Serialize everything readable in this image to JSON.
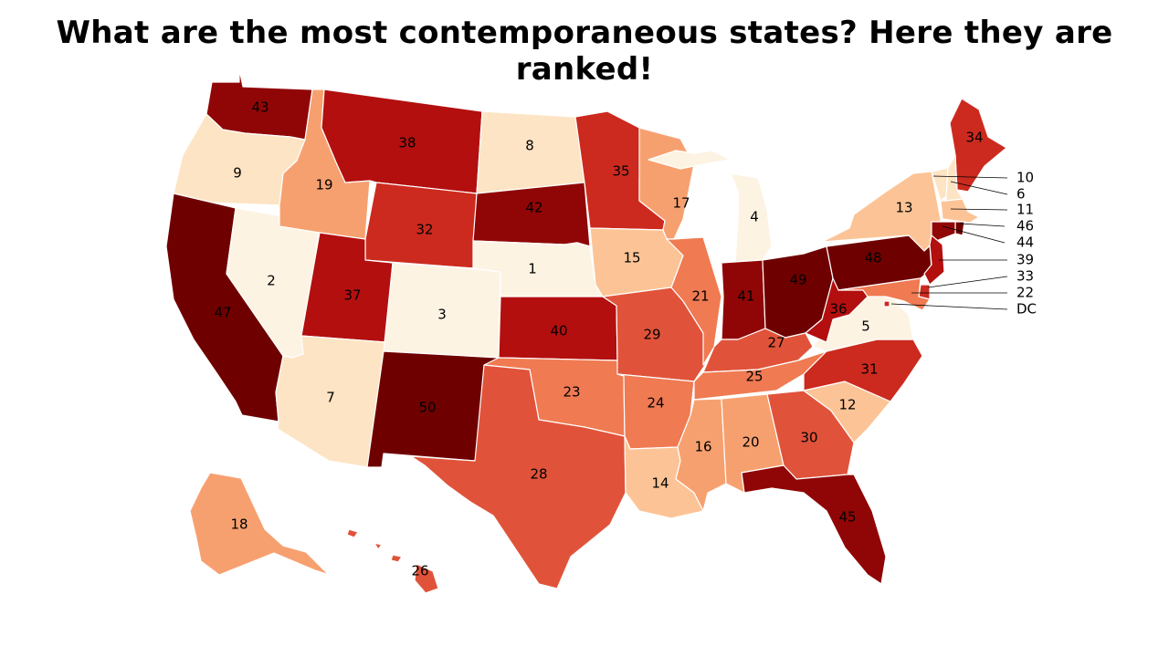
{
  "title": "What are the most contemporaneous states? Here they are ranked!",
  "colors": {
    "scale": [
      "#fdf3e3",
      "#fde4c4",
      "#fcc496",
      "#f7a06f",
      "#f07a52",
      "#e0533a",
      "#cc2a1e",
      "#b30f0f",
      "#900606",
      "#6f0000"
    ]
  },
  "ranks": {
    "WA": "43",
    "OR": "9",
    "CA": "47",
    "NV": "2",
    "ID": "19",
    "MT": "38",
    "WY": "32",
    "UT": "37",
    "AZ": "7",
    "CO": "3",
    "NM": "50",
    "ND": "8",
    "SD": "42",
    "NE": "1",
    "KS": "40",
    "OK": "23",
    "TX": "28",
    "MN": "35",
    "IA": "15",
    "MO": "29",
    "AR": "24",
    "LA": "14",
    "WI": "17",
    "IL": "21",
    "MI": "4",
    "IN": "41",
    "OH": "49",
    "KY": "27",
    "TN": "25",
    "MS": "16",
    "AL": "20",
    "GA": "30",
    "FL": "45",
    "SC": "12",
    "NC": "31",
    "VA": "5",
    "WV": "36",
    "PA": "48",
    "NY": "13",
    "ME": "34",
    "AK": "18",
    "HI": "26",
    "VT": "10",
    "NH": "6",
    "MA": "11",
    "RI": "46",
    "CT": "44",
    "NJ": "39",
    "DE": "33",
    "MD": "22",
    "DC": "DC"
  }
}
